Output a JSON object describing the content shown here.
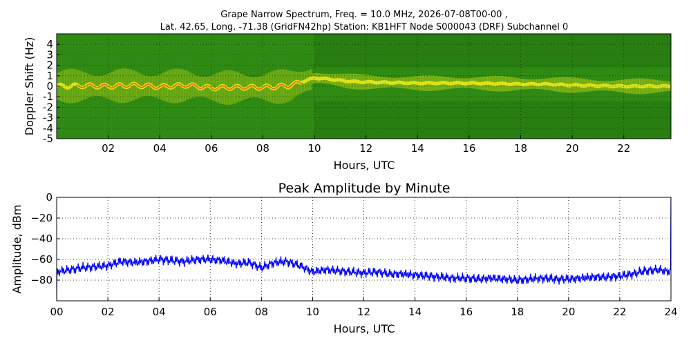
{
  "figure": {
    "title_line1": "Grape Narrow Spectrum, Freq. = 10.0 MHz, 2026-07-08T00-00 ,",
    "title_line2": "Lat.  42.65, Long. -71.38 (GridFN42hp) Station: KB1HFT Node S000043 (DRF) Subchannel 0"
  },
  "colors": {
    "spectrogram_bg": "#2f8a12",
    "spectrogram_dark": "#0d4a04",
    "spectrogram_yellow": "#e8e818",
    "spectrogram_orange": "#e85a10",
    "amplitude_line": "#0000ff",
    "grid": "#000000"
  },
  "chart_data": [
    {
      "type": "heatmap",
      "title": "",
      "xlabel": "Hours, UTC",
      "ylabel": "Doppler Shift (Hz)",
      "xlim": [
        0,
        23.83
      ],
      "ylim": [
        -5,
        5
      ],
      "x_ticks": [
        "02",
        "04",
        "06",
        "08",
        "10",
        "12",
        "14",
        "16",
        "18",
        "20",
        "22"
      ],
      "y_ticks": [
        "4",
        "3",
        "2",
        "1",
        "0",
        "-1",
        "-2",
        "-3",
        "-4",
        "-5"
      ],
      "ridge": {
        "x": [
          0,
          1,
          2,
          3,
          4,
          5,
          6,
          7,
          8,
          8.5,
          9,
          9.5,
          10,
          10.5,
          11,
          11.5,
          12,
          13,
          14,
          15,
          16,
          17,
          18,
          19,
          20,
          21,
          22,
          23,
          23.8
        ],
        "y": [
          0.0,
          0.05,
          0.0,
          0.1,
          -0.05,
          0.1,
          -0.15,
          -0.1,
          -0.1,
          -0.05,
          0.05,
          0.4,
          0.8,
          0.7,
          0.55,
          0.45,
          0.4,
          0.35,
          0.3,
          0.3,
          0.3,
          0.25,
          0.2,
          0.2,
          0.1,
          0.05,
          0.0,
          0.0,
          0.0
        ]
      },
      "grid": true
    },
    {
      "type": "line",
      "title": "Peak Amplitude by Minute",
      "xlabel": "Hours, UTC",
      "ylabel": "Amplitude, dBm",
      "xlim": [
        0,
        24
      ],
      "ylim": [
        -100,
        0
      ],
      "x_ticks": [
        "00",
        "02",
        "04",
        "06",
        "08",
        "10",
        "12",
        "14",
        "16",
        "18",
        "20",
        "22",
        "24"
      ],
      "y_ticks": [
        "0",
        "−20",
        "−40",
        "−60",
        "−80"
      ],
      "x": [
        0,
        0.5,
        1,
        1.5,
        2,
        2.5,
        3,
        3.5,
        4,
        4.5,
        5,
        5.5,
        6,
        6.5,
        7,
        7.5,
        8,
        8.5,
        9,
        9.5,
        10,
        10.5,
        11,
        11.5,
        12,
        12.5,
        13,
        13.5,
        14,
        14.5,
        15,
        15.5,
        16,
        16.5,
        17,
        17.5,
        18,
        18.5,
        19,
        19.5,
        20,
        20.5,
        21,
        21.5,
        22,
        22.5,
        23,
        23.5,
        24
      ],
      "y": [
        -72,
        -70,
        -68,
        -67,
        -66,
        -62,
        -63,
        -62,
        -60,
        -61,
        -62,
        -60,
        -60,
        -61,
        -64,
        -63,
        -68,
        -63,
        -62,
        -66,
        -72,
        -70,
        -71,
        -72,
        -73,
        -72,
        -74,
        -74,
        -75,
        -76,
        -77,
        -78,
        -78,
        -79,
        -78,
        -79,
        -80,
        -79,
        -78,
        -79,
        -79,
        -78,
        -77,
        -77,
        -76,
        -74,
        -71,
        -70,
        -72
      ],
      "grid": true
    }
  ]
}
